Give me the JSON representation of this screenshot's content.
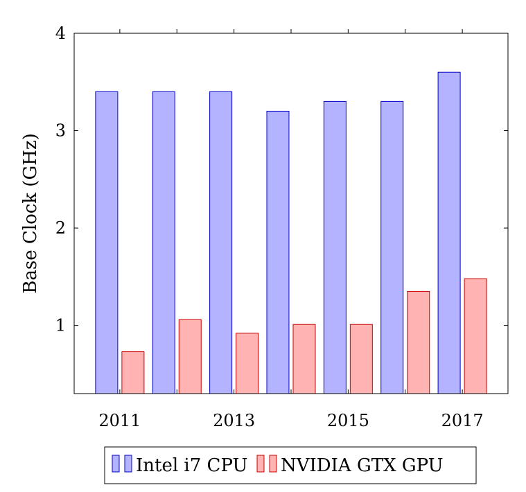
{
  "chart_data": {
    "type": "bar",
    "title": "",
    "xlabel": "",
    "ylabel": "Base Clock (GHz)",
    "x": [
      2011,
      2012,
      2013,
      2014,
      2015,
      2016,
      2017
    ],
    "xticks": [
      "2011",
      "2013",
      "2015",
      "2017"
    ],
    "yticks": [
      "1",
      "2",
      "3",
      "4"
    ],
    "ylim": [
      0.3,
      4.0
    ],
    "xlim": [
      2010.2,
      2017.8
    ],
    "grid": false,
    "legend_position": "bottom-center",
    "series": [
      {
        "name": "Intel i7 CPU",
        "values": [
          3.4,
          3.4,
          3.4,
          3.2,
          3.3,
          3.3,
          3.6
        ],
        "fill": "#b3b3ff",
        "stroke": "#0000cc"
      },
      {
        "name": "NVIDIA GTX GPU",
        "values": [
          0.73,
          1.06,
          0.92,
          1.01,
          1.01,
          1.35,
          1.48
        ],
        "fill": "#ffb3b3",
        "stroke": "#cc0000"
      }
    ]
  }
}
